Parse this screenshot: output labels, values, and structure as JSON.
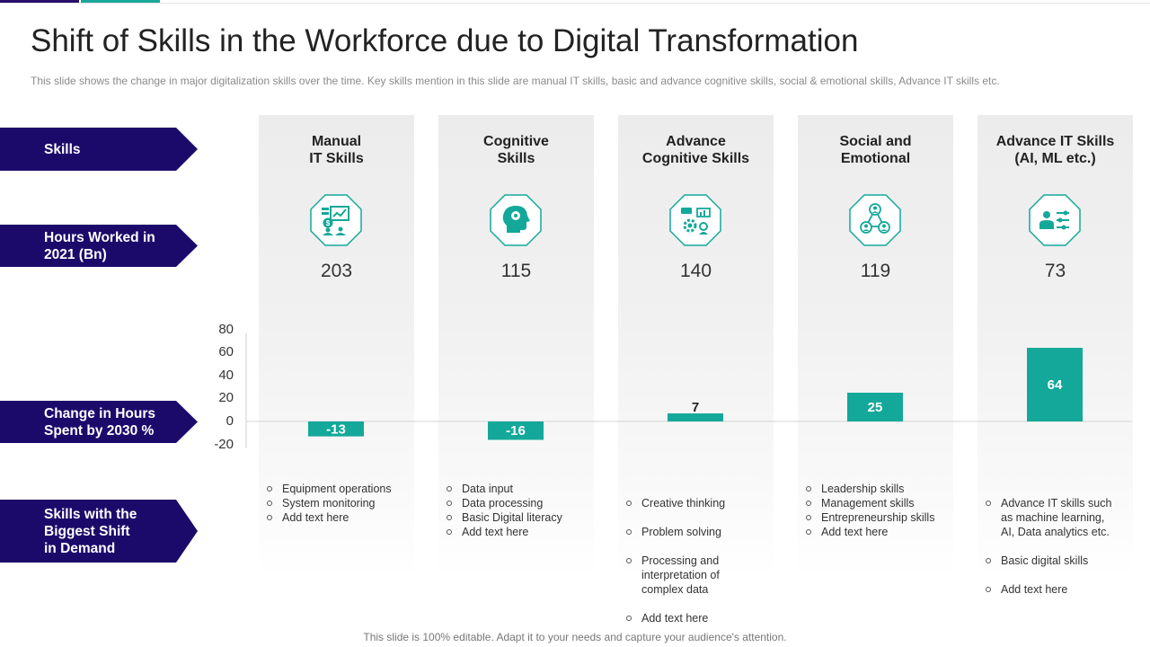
{
  "title": "Shift of Skills in the Workforce due to Digital Transformation",
  "subtitle": "This slide shows the change in major digitalization skills over the time. Key skills mention in this slide are manual IT skills, basic and advance  cognitive skills, social & emotional skills, Advance IT skills etc.",
  "row_labels": [
    "Skills",
    "Hours Worked in\n2021 (Bn)",
    "Change in Hours\nSpent by 2030 %",
    "Skills with the\nBiggest Shift\nin Demand"
  ],
  "columns": [
    {
      "name": "Manual\nIT Skills",
      "icon": "finance-dashboard-icon",
      "hours": "203",
      "bullets": [
        "Equipment operations",
        "System monitoring",
        "Add text here"
      ]
    },
    {
      "name": "Cognitive\nSkills",
      "icon": "brain-gear-icon",
      "hours": "115",
      "bullets": [
        "Data input",
        "Data processing",
        "Basic Digital literacy",
        "Add text here"
      ]
    },
    {
      "name": "Advance\nCognitive Skills",
      "icon": "gears-chart-icon",
      "hours": "140",
      "bullets": [
        "Creative  thinking",
        "Problem solving",
        "Processing and\ninterpretation  of\ncomplex data",
        "Add text here"
      ]
    },
    {
      "name": "Social and\nEmotional",
      "icon": "network-people-icon",
      "hours": "119",
      "bullets": [
        "Leadership skills",
        "Management  skills",
        "Entrepreneurship  skills",
        "Add text here"
      ]
    },
    {
      "name": "Advance IT Skills\n(AI, ML etc.)",
      "icon": "person-settings-icon",
      "hours": "73",
      "bullets": [
        "Advance  IT skills such\nas machine learning,\nAI, Data analytics etc.",
        "Basic digital skills",
        "Add text here"
      ]
    }
  ],
  "chart_data": {
    "type": "bar",
    "categories": [
      "Manual IT Skills",
      "Cognitive Skills",
      "Advance Cognitive Skills",
      "Social and Emotional",
      "Advance IT Skills (AI, ML etc.)"
    ],
    "values": [
      -13,
      -16,
      7,
      25,
      64
    ],
    "value_labels": [
      "-13",
      "-16",
      "7",
      "25",
      "64"
    ],
    "yticks": [
      "80",
      "60",
      "40",
      "20",
      "0",
      "-20"
    ],
    "ylim": [
      -20,
      80
    ],
    "bar_color": "#14a89a",
    "grid": false
  },
  "footer": "This slide is 100% editable. Adapt it to your needs and capture your audience's attention.",
  "colors": {
    "arrow": "#1c0a6b",
    "accent": "#14a89a"
  }
}
